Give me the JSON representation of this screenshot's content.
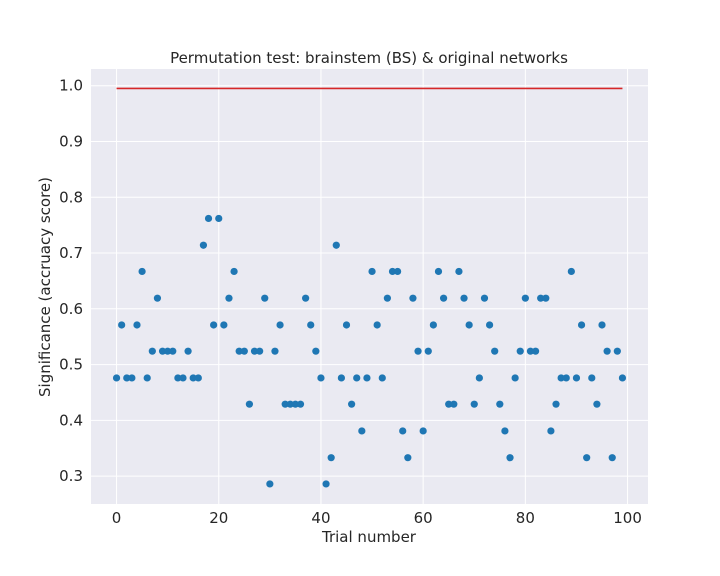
{
  "chart_data": {
    "type": "scatter",
    "title": "Permutation test: brainstem (BS) & original networks",
    "xlabel": "Trial number",
    "ylabel": "Significance (accruacy score)",
    "xlim": [
      -5,
      104
    ],
    "ylim": [
      0.25,
      1.03
    ],
    "xticks": [
      0,
      20,
      40,
      60,
      80,
      100
    ],
    "yticks": [
      0.3,
      0.4,
      0.5,
      0.6,
      0.7,
      0.8,
      0.9,
      1.0
    ],
    "xtick_labels": [
      "0",
      "20",
      "40",
      "60",
      "80",
      "100"
    ],
    "ytick_labels": [
      "0.3",
      "0.4",
      "0.5",
      "0.6",
      "0.7",
      "0.8",
      "0.9",
      "1.0"
    ],
    "grid": true,
    "background_color": "#eaeaf2",
    "point_color": "#1f77b4",
    "line_color": "#d62728",
    "reference_line": {
      "y": 0.9952,
      "x": [
        0,
        99
      ]
    },
    "series": [
      {
        "x": [
          0,
          1,
          2,
          3,
          4,
          5,
          6,
          7,
          8,
          9,
          10,
          11,
          12,
          13,
          14,
          15,
          16,
          17,
          18,
          19,
          20,
          21,
          22,
          23,
          24,
          25,
          26,
          27,
          28,
          29,
          30,
          31,
          32,
          33,
          34,
          35,
          36,
          37,
          38,
          39,
          40,
          41,
          42,
          43,
          44,
          45,
          46,
          47,
          48,
          49,
          50,
          51,
          52,
          53,
          54,
          55,
          56,
          57,
          58,
          59,
          60,
          61,
          62,
          63,
          64,
          65,
          66,
          67,
          68,
          69,
          70,
          71,
          72,
          73,
          74,
          75,
          76,
          77,
          78,
          79,
          80,
          81,
          82,
          83,
          84,
          85,
          86,
          87,
          88,
          89,
          90,
          91,
          92,
          93,
          94,
          95,
          96,
          97,
          98,
          99
        ],
        "y": [
          0.476,
          0.571,
          0.476,
          0.476,
          0.571,
          0.667,
          0.476,
          0.524,
          0.619,
          0.524,
          0.524,
          0.524,
          0.476,
          0.476,
          0.524,
          0.476,
          0.476,
          0.714,
          0.762,
          0.571,
          0.762,
          0.571,
          0.619,
          0.667,
          0.524,
          0.524,
          0.429,
          0.524,
          0.524,
          0.619,
          0.286,
          0.524,
          0.571,
          0.429,
          0.429,
          0.429,
          0.429,
          0.619,
          0.571,
          0.524,
          0.476,
          0.286,
          0.333,
          0.714,
          0.476,
          0.571,
          0.429,
          0.476,
          0.381,
          0.476,
          0.667,
          0.571,
          0.476,
          0.619,
          0.667,
          0.667,
          0.381,
          0.333,
          0.619,
          0.524,
          0.381,
          0.524,
          0.571,
          0.667,
          0.619,
          0.429,
          0.429,
          0.667,
          0.619,
          0.571,
          0.429,
          0.476,
          0.619,
          0.571,
          0.524,
          0.429,
          0.381,
          0.333,
          0.476,
          0.524,
          0.619,
          0.524,
          0.524,
          0.619,
          0.619,
          0.381,
          0.429,
          0.476,
          0.476,
          0.667,
          0.476,
          0.571,
          0.333,
          0.476,
          0.429,
          0.571,
          0.524,
          0.333,
          0.524,
          0.476
        ]
      }
    ]
  }
}
